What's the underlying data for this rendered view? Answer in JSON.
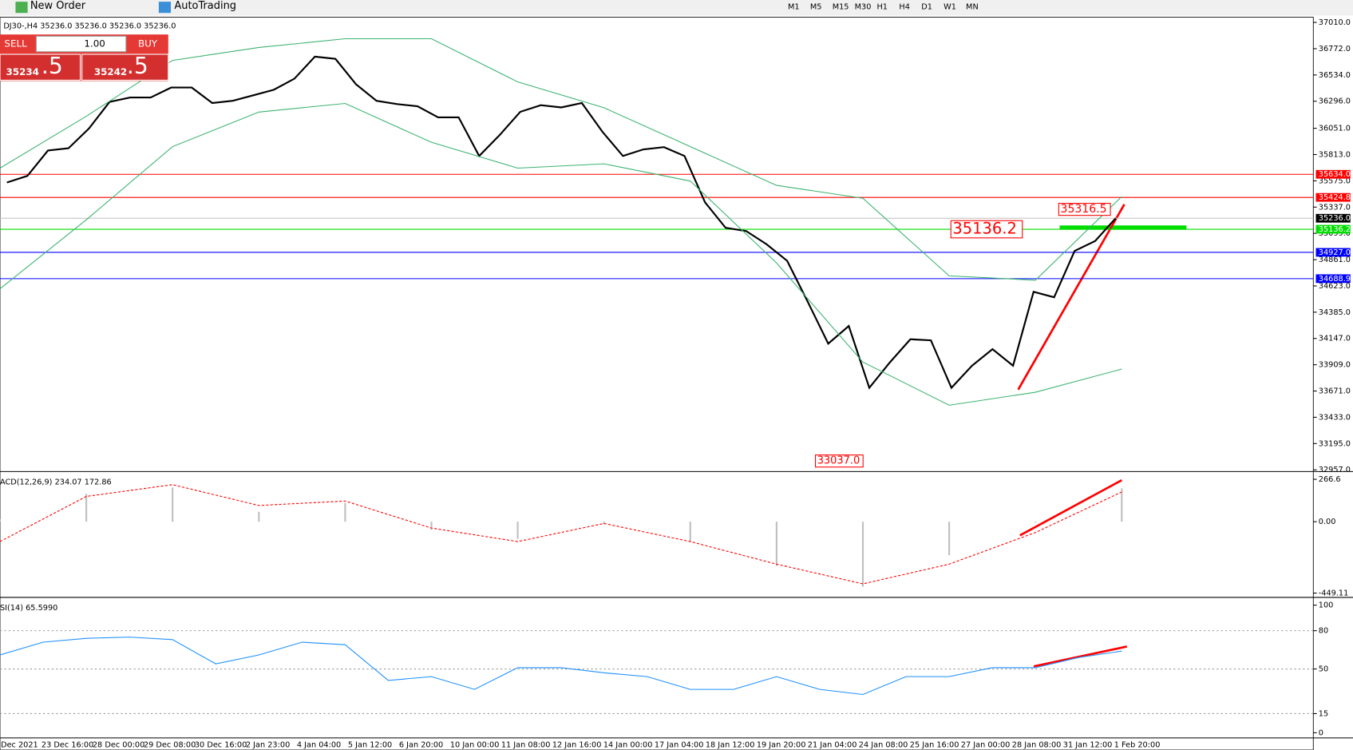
{
  "toolbar": {
    "new_order": "New Order",
    "auto_trading": "AutoTrading",
    "timeframes": [
      "M1",
      "M5",
      "M15",
      "M30",
      "H1",
      "H4",
      "D1",
      "W1",
      "MN"
    ]
  },
  "trade_panel": {
    "sell": "SELL",
    "buy": "BUY",
    "lot": "1.00",
    "sell_price": "35234",
    "sell_big": ".5",
    "buy_price": "35242",
    "buy_big": ".5"
  },
  "time_axis": [
    "Dec 2021",
    "23 Dec 16:00",
    "28 Dec 00:00",
    "29 Dec 08:00",
    "30 Dec 16:00",
    "2 Jan 23:00",
    "4 Jan 04:00",
    "5 Jan 12:00",
    "6 Jan 20:00",
    "10 Jan 00:00",
    "11 Jan 08:00",
    "12 Jan 16:00",
    "14 Jan 00:00",
    "17 Jan 04:00",
    "18 Jan 12:00",
    "19 Jan 20:00",
    "21 Jan 04:00",
    "24 Jan 08:00",
    "25 Jan 16:00",
    "27 Jan 00:00",
    "28 Jan 08:00",
    "31 Jan 12:00",
    "1 Feb 20:00"
  ],
  "chart_data": [
    {
      "type": "line",
      "title": "DJ30-,H4  35236.0 35236.0 35236.0 35236.0",
      "ylim": [
        32957,
        37010
      ],
      "yticks": [
        {
          "value": 37010,
          "label": "37010.0"
        },
        {
          "value": 36772,
          "label": "36772.0"
        },
        {
          "value": 36534,
          "label": "36534.0"
        },
        {
          "value": 36296,
          "label": "36296.0"
        },
        {
          "value": 36051,
          "label": "36051.0"
        },
        {
          "value": 35813,
          "label": "35813.0"
        },
        {
          "value": 35575,
          "label": "35575.0"
        },
        {
          "value": 35337,
          "label": "35337.0"
        },
        {
          "value": 35099,
          "label": "35099.0"
        },
        {
          "value": 34861,
          "label": "34861.0"
        },
        {
          "value": 34623,
          "label": "34623.0"
        },
        {
          "value": 34385,
          "label": "34385.0"
        },
        {
          "value": 34147,
          "label": "34147.0"
        },
        {
          "value": 33909,
          "label": "33909.0"
        },
        {
          "value": 33671,
          "label": "33671.0"
        },
        {
          "value": 33433,
          "label": "33433.0"
        },
        {
          "value": 33195,
          "label": "33195.0"
        },
        {
          "value": 32957,
          "label": "32957.0"
        }
      ],
      "series": [
        {
          "color": "#000000",
          "values": [
            35560,
            35620,
            35850,
            35870,
            36050,
            36290,
            36330,
            36330,
            36420,
            36420,
            36280,
            36300,
            36350,
            36400,
            36500,
            36700,
            36680,
            36450,
            36300,
            36270,
            36250,
            36150,
            36150,
            35800,
            35990,
            36200,
            36260,
            36240,
            36280,
            36020,
            35800,
            35860,
            35880,
            35800,
            35380,
            35150,
            35120,
            35000,
            34850,
            34480,
            34100,
            34260,
            33700,
            33930,
            34140,
            34130,
            33700,
            33900,
            34050,
            33900,
            34570,
            34520,
            34940,
            35030,
            35236
          ]
        },
        {
          "color": "#3cb371",
          "values": [
            35690,
            36160,
            36666,
            36783,
            36862,
            36862,
            36471,
            36237,
            35885,
            35534,
            35417,
            34714,
            34675,
            35432
          ]
        },
        {
          "color": "#3cb371",
          "values": [
            34597,
            35222,
            35885,
            36198,
            36276,
            35924,
            35690,
            35729,
            35573,
            34831,
            33933,
            33542,
            33660,
            33870
          ]
        }
      ],
      "levels": [
        {
          "value": 35634,
          "label": "35634.0",
          "color": "#ff0000"
        },
        {
          "value": 35424.8,
          "label": "35424.8",
          "color": "#ff0000"
        },
        {
          "value": 35236,
          "label": "35236.0",
          "color": "#c0c0c0"
        },
        {
          "value": 35136.2,
          "label": "35136.2",
          "color": "#00dd00"
        },
        {
          "value": 34927,
          "label": "34927.0",
          "color": "#0000ff"
        },
        {
          "value": 34688.9,
          "label": "34688.9",
          "color": "#0000ff"
        }
      ],
      "annotations": [
        {
          "value": 35316.5,
          "label": "35316.5"
        },
        {
          "value": 35136.2,
          "label": "35136.2"
        },
        {
          "value": 33037,
          "label": "33037.0"
        }
      ]
    },
    {
      "type": "macd",
      "title": "ACD(12,26,9) 234.07 172.86",
      "ylim": [
        -449.11,
        266.6
      ],
      "yticks": [
        266.6,
        {
          "value": 0,
          "label": "0.00"
        },
        -449.11
      ],
      "series": [
        {
          "color": "#c0c0c0",
          "values": [
            16,
            176,
            215,
            62,
            119,
            -51,
            -108,
            -17,
            -125,
            -278,
            -409,
            -210,
            -6,
            210
          ]
        },
        {
          "color": "#ff0000",
          "values": [
            -125,
            159,
            233,
            102,
            130,
            -40,
            -125,
            -11,
            -125,
            -267,
            -391,
            -267,
            -68,
            187
          ]
        }
      ]
    },
    {
      "type": "line",
      "title": "SI(14) 65.5990",
      "ylim": [
        0,
        100
      ],
      "yticks": [
        100,
        80,
        50,
        15,
        0
      ],
      "series": [
        {
          "color": "#1e90ff",
          "values": [
            61,
            71,
            74,
            75,
            73,
            54,
            61,
            71,
            69,
            41,
            44,
            34,
            51,
            51,
            47,
            44,
            34,
            34,
            44,
            34,
            30,
            44,
            44,
            51,
            51,
            59,
            64
          ]
        }
      ]
    }
  ]
}
